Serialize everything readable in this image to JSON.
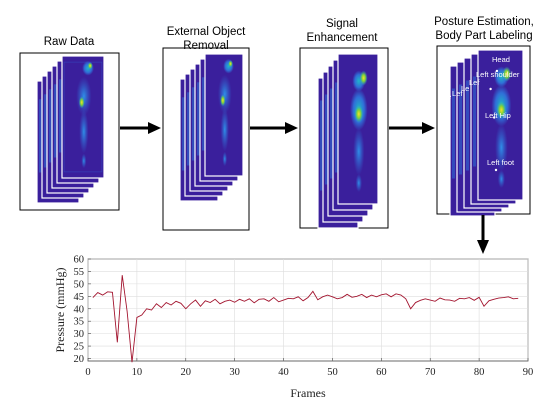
{
  "stages": [
    {
      "title_lines": [
        "Raw Data"
      ]
    },
    {
      "title_lines": [
        "External Object",
        "Removal"
      ]
    },
    {
      "title_lines": [
        "Signal",
        "Enhancement"
      ]
    },
    {
      "title_lines": [
        "Posture Estimation,",
        "Body Part Labeling"
      ]
    }
  ],
  "body_labels": {
    "head": "Head",
    "left_shoulder": "Left shoulder",
    "left_hip": "Left Hip",
    "left_foot": "Left foot",
    "stack_partial_1": "Lef",
    "stack_partial_2": "Lef",
    "stack_partial_3": "Le",
    "stack_partial_4": "Le"
  },
  "colors": {
    "heatmap_background": "#3a1f9c",
    "heatmap_low": "#2f6fd8",
    "heatmap_mid": "#1fb7c8",
    "heatmap_high": "#f7e12a",
    "line": "#a3152f",
    "grid": "#dddddd"
  },
  "chart_data": {
    "type": "line",
    "xlabel": "Frames",
    "ylabel": "Pressure (mmHg)",
    "xlim": [
      0,
      90
    ],
    "ylim": [
      19,
      60
    ],
    "xticks": [
      0,
      10,
      20,
      30,
      40,
      50,
      60,
      70,
      80,
      90
    ],
    "yticks": [
      20,
      25,
      30,
      35,
      40,
      45,
      50,
      55,
      60
    ],
    "grid": true,
    "series": [
      {
        "x": [
          1,
          2,
          3,
          4,
          5,
          6,
          7,
          8,
          9,
          10,
          11,
          12,
          13,
          14,
          15,
          16,
          17,
          18,
          19,
          20,
          21,
          22,
          23,
          24,
          25,
          26,
          27,
          28,
          29,
          30,
          31,
          32,
          33,
          34,
          35,
          36,
          37,
          38,
          39,
          40,
          41,
          42,
          43,
          44,
          45,
          46,
          47,
          48,
          49,
          50,
          51,
          52,
          53,
          54,
          55,
          56,
          57,
          58,
          59,
          60,
          61,
          62,
          63,
          64,
          65,
          66,
          67,
          68,
          69,
          70,
          71,
          72,
          73,
          74,
          75,
          76,
          77,
          78,
          79,
          80,
          81,
          82,
          83,
          84,
          85,
          86,
          87,
          88
        ],
        "values": [
          44.5,
          46.5,
          45.5,
          46.8,
          46.6,
          26.5,
          53.5,
          39.0,
          18.5,
          36.5,
          37.5,
          40.0,
          39.5,
          42.0,
          40.5,
          42.5,
          41.5,
          43.0,
          42.2,
          40.0,
          42.0,
          43.5,
          41.0,
          43.2,
          42.5,
          43.8,
          42.0,
          43.0,
          43.5,
          42.6,
          43.8,
          43.0,
          44.0,
          42.4,
          43.8,
          44.0,
          43.0,
          44.5,
          42.8,
          43.5,
          44.2,
          44.0,
          44.8,
          43.2,
          44.5,
          47.0,
          43.6,
          44.8,
          45.5,
          44.8,
          44.0,
          44.5,
          45.8,
          44.6,
          45.0,
          45.8,
          44.5,
          45.5,
          44.8,
          45.6,
          46.0,
          44.8,
          46.0,
          45.5,
          44.0,
          40.0,
          42.5,
          43.4,
          44.0,
          43.5,
          43.0,
          44.3,
          43.6,
          43.5,
          43.0,
          44.2,
          44.0,
          44.5,
          43.4,
          44.6,
          41.0,
          43.2,
          43.8,
          44.3,
          44.5,
          44.8,
          44.0,
          44.2
        ]
      }
    ]
  }
}
